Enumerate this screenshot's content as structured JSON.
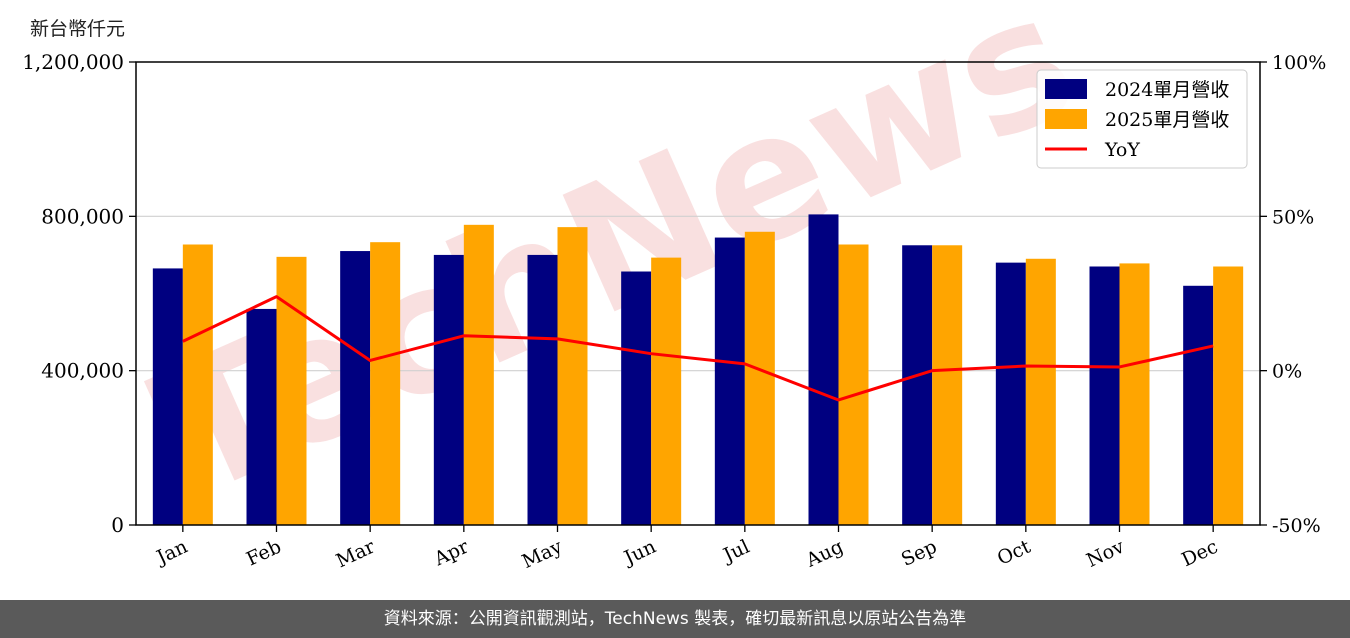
{
  "unit_label": "新台幣仟元",
  "footer": "資料來源：公開資訊觀測站，TechNews 製表，確切最新訊息以原站公告為準",
  "watermark": "TechNews",
  "colors": {
    "bar_2024": "#000080",
    "bar_2025": "#ffa500",
    "yoy_line": "#ff0000",
    "grid": "#d0d0d0",
    "watermark": "#f4c7c7"
  },
  "chart_data": {
    "type": "bar",
    "categories": [
      "Jan",
      "Feb",
      "Mar",
      "Apr",
      "May",
      "Jun",
      "Jul",
      "Aug",
      "Sep",
      "Oct",
      "Nov",
      "Dec"
    ],
    "series": [
      {
        "name": "2024單月營收",
        "type": "bar",
        "axis": "left",
        "values": [
          665000,
          560000,
          710000,
          700000,
          700000,
          657000,
          745000,
          805000,
          725000,
          680000,
          670000,
          620000
        ]
      },
      {
        "name": "2025單月營收",
        "type": "bar",
        "axis": "left",
        "values": [
          727000,
          695000,
          733000,
          778000,
          772000,
          693000,
          760000,
          727000,
          725000,
          690000,
          678000,
          670000
        ]
      },
      {
        "name": "YoY",
        "type": "line",
        "axis": "right",
        "values": [
          9.5,
          24.0,
          3.3,
          11.3,
          10.3,
          5.5,
          2.2,
          -9.5,
          0.0,
          1.5,
          1.2,
          8.0
        ]
      }
    ],
    "left_axis": {
      "ylim": [
        0,
        1200000
      ],
      "ticks": [
        "0",
        "400,000",
        "800,000",
        "1,200,000"
      ]
    },
    "right_axis": {
      "ylim": [
        -50,
        100
      ],
      "ticks": [
        "-50%",
        "0%",
        "50%",
        "100%"
      ]
    },
    "legend_position": "top-right",
    "grid": "horizontal"
  }
}
